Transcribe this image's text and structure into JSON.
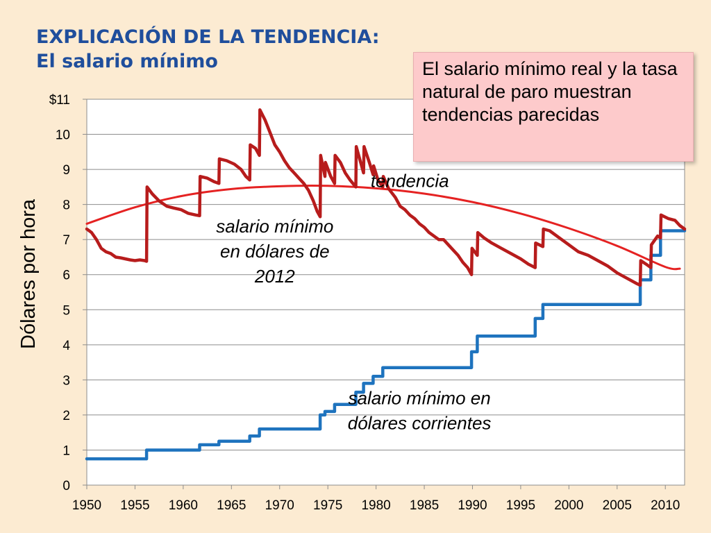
{
  "slide": {
    "title_line1": "EXPLICACIÓN DE LA TENDENCIA:",
    "title_line2": "El salario mínimo"
  },
  "callout": {
    "text": "El salario mínimo real y la tasa natural de paro muestran tendencias parecidas"
  },
  "colors": {
    "real_series": "#B71C1C",
    "nominal_series": "#1E73BE",
    "trend": "#E52222",
    "title": "#1F4E9C",
    "background": "#FCEBD2"
  },
  "chart_data": {
    "type": "line",
    "title": "",
    "xlabel": "",
    "ylabel": "Dólares por hora",
    "xlim": [
      1950,
      2012
    ],
    "ylim": [
      0,
      11
    ],
    "x_ticks": [
      1950,
      1955,
      1960,
      1965,
      1970,
      1975,
      1980,
      1985,
      1990,
      1995,
      2000,
      2005,
      2010
    ],
    "y_ticks": [
      0,
      1,
      2,
      3,
      4,
      5,
      6,
      7,
      8,
      9,
      10,
      11
    ],
    "y_tick_labels": [
      "0",
      "1",
      "2",
      "3",
      "4",
      "5",
      "6",
      "7",
      "8",
      "9",
      "10",
      "$11"
    ],
    "grid": "horizontal",
    "legend": "none",
    "annotations": [
      {
        "id": "trend",
        "lines": [
          "tendencia"
        ],
        "x": 1983.5,
        "y": 8.5
      },
      {
        "id": "real",
        "lines": [
          "salario mínimo",
          "en dólares de",
          "2012"
        ],
        "x": 1969.5,
        "y": 7.2
      },
      {
        "id": "nominal",
        "lines": [
          "salario mínimo en",
          "dólares corrientes"
        ],
        "x": 1984.5,
        "y": 2.3
      }
    ],
    "series": [
      {
        "id": "real",
        "style": "line",
        "points": [
          [
            1950.0,
            7.3
          ],
          [
            1950.5,
            7.2
          ],
          [
            1951.0,
            7.0
          ],
          [
            1951.5,
            6.75
          ],
          [
            1952.0,
            6.65
          ],
          [
            1952.5,
            6.6
          ],
          [
            1953.0,
            6.5
          ],
          [
            1953.5,
            6.48
          ],
          [
            1954.0,
            6.45
          ],
          [
            1954.5,
            6.42
          ],
          [
            1955.0,
            6.4
          ],
          [
            1955.5,
            6.42
          ],
          [
            1956.0,
            6.4
          ],
          [
            1956.2,
            6.38
          ],
          [
            1956.25,
            8.5
          ],
          [
            1956.8,
            8.3
          ],
          [
            1957.5,
            8.1
          ],
          [
            1958.3,
            7.95
          ],
          [
            1959.0,
            7.9
          ],
          [
            1959.8,
            7.85
          ],
          [
            1960.5,
            7.75
          ],
          [
            1961.3,
            7.7
          ],
          [
            1961.7,
            7.68
          ],
          [
            1961.75,
            8.8
          ],
          [
            1962.5,
            8.75
          ],
          [
            1963.2,
            8.65
          ],
          [
            1963.7,
            8.6
          ],
          [
            1963.75,
            9.3
          ],
          [
            1964.5,
            9.25
          ],
          [
            1965.3,
            9.15
          ],
          [
            1966.0,
            9.0
          ],
          [
            1966.5,
            8.8
          ],
          [
            1966.9,
            8.7
          ],
          [
            1966.95,
            9.7
          ],
          [
            1967.5,
            9.6
          ],
          [
            1967.9,
            9.4
          ],
          [
            1967.95,
            10.7
          ],
          [
            1968.5,
            10.4
          ],
          [
            1969.0,
            10.05
          ],
          [
            1969.5,
            9.7
          ],
          [
            1970.0,
            9.5
          ],
          [
            1970.5,
            9.25
          ],
          [
            1971.0,
            9.05
          ],
          [
            1971.5,
            8.9
          ],
          [
            1972.0,
            8.75
          ],
          [
            1972.5,
            8.6
          ],
          [
            1973.0,
            8.4
          ],
          [
            1973.5,
            8.1
          ],
          [
            1973.9,
            7.8
          ],
          [
            1974.2,
            7.65
          ],
          [
            1974.25,
            9.4
          ],
          [
            1974.7,
            8.8
          ],
          [
            1974.75,
            9.2
          ],
          [
            1975.3,
            8.8
          ],
          [
            1975.7,
            8.6
          ],
          [
            1975.75,
            9.4
          ],
          [
            1976.3,
            9.2
          ],
          [
            1976.8,
            8.9
          ],
          [
            1977.3,
            8.7
          ],
          [
            1977.9,
            8.5
          ],
          [
            1977.95,
            9.65
          ],
          [
            1978.4,
            9.2
          ],
          [
            1978.7,
            8.9
          ],
          [
            1978.75,
            9.65
          ],
          [
            1979.3,
            9.2
          ],
          [
            1979.7,
            8.85
          ],
          [
            1979.75,
            9.1
          ],
          [
            1980.2,
            8.7
          ],
          [
            1980.7,
            8.5
          ],
          [
            1980.75,
            8.8
          ],
          [
            1981.3,
            8.45
          ],
          [
            1982.0,
            8.2
          ],
          [
            1982.5,
            7.95
          ],
          [
            1983.0,
            7.85
          ],
          [
            1983.5,
            7.7
          ],
          [
            1984.0,
            7.6
          ],
          [
            1984.5,
            7.45
          ],
          [
            1985.0,
            7.35
          ],
          [
            1985.5,
            7.2
          ],
          [
            1986.0,
            7.1
          ],
          [
            1986.5,
            7.0
          ],
          [
            1987.0,
            7.0
          ],
          [
            1987.5,
            6.85
          ],
          [
            1988.0,
            6.7
          ],
          [
            1988.5,
            6.55
          ],
          [
            1989.0,
            6.35
          ],
          [
            1989.5,
            6.2
          ],
          [
            1989.9,
            6.0
          ],
          [
            1989.95,
            6.75
          ],
          [
            1990.5,
            6.55
          ],
          [
            1990.55,
            7.2
          ],
          [
            1991.2,
            7.05
          ],
          [
            1992.0,
            6.9
          ],
          [
            1993.0,
            6.75
          ],
          [
            1994.0,
            6.6
          ],
          [
            1995.0,
            6.45
          ],
          [
            1995.8,
            6.3
          ],
          [
            1996.5,
            6.2
          ],
          [
            1996.55,
            6.9
          ],
          [
            1997.3,
            6.8
          ],
          [
            1997.35,
            7.3
          ],
          [
            1998.0,
            7.25
          ],
          [
            1999.0,
            7.05
          ],
          [
            2000.0,
            6.85
          ],
          [
            2001.0,
            6.65
          ],
          [
            2002.0,
            6.55
          ],
          [
            2003.0,
            6.4
          ],
          [
            2004.0,
            6.25
          ],
          [
            2005.0,
            6.05
          ],
          [
            2006.0,
            5.9
          ],
          [
            2007.0,
            5.75
          ],
          [
            2007.4,
            5.7
          ],
          [
            2007.45,
            6.4
          ],
          [
            2008.0,
            6.3
          ],
          [
            2008.5,
            6.2
          ],
          [
            2008.55,
            6.85
          ],
          [
            2009.2,
            7.1
          ],
          [
            2009.5,
            7.05
          ],
          [
            2009.55,
            7.7
          ],
          [
            2010.3,
            7.6
          ],
          [
            2011.0,
            7.55
          ],
          [
            2011.5,
            7.4
          ],
          [
            2012.0,
            7.3
          ]
        ]
      },
      {
        "id": "nominal",
        "style": "step",
        "points": [
          [
            1950.0,
            0.75
          ],
          [
            1956.2,
            0.75
          ],
          [
            1956.2,
            1.0
          ],
          [
            1961.7,
            1.0
          ],
          [
            1961.7,
            1.15
          ],
          [
            1963.7,
            1.15
          ],
          [
            1963.7,
            1.25
          ],
          [
            1966.9,
            1.25
          ],
          [
            1966.9,
            1.4
          ],
          [
            1967.9,
            1.4
          ],
          [
            1967.9,
            1.6
          ],
          [
            1974.2,
            1.6
          ],
          [
            1974.2,
            2.0
          ],
          [
            1974.7,
            2.0
          ],
          [
            1974.7,
            2.1
          ],
          [
            1975.7,
            2.1
          ],
          [
            1975.7,
            2.3
          ],
          [
            1977.9,
            2.3
          ],
          [
            1977.9,
            2.65
          ],
          [
            1978.7,
            2.65
          ],
          [
            1978.7,
            2.9
          ],
          [
            1979.7,
            2.9
          ],
          [
            1979.7,
            3.1
          ],
          [
            1980.7,
            3.1
          ],
          [
            1980.7,
            3.35
          ],
          [
            1989.9,
            3.35
          ],
          [
            1989.9,
            3.8
          ],
          [
            1990.5,
            3.8
          ],
          [
            1990.5,
            4.25
          ],
          [
            1996.5,
            4.25
          ],
          [
            1996.5,
            4.75
          ],
          [
            1997.3,
            4.75
          ],
          [
            1997.3,
            5.15
          ],
          [
            2007.4,
            5.15
          ],
          [
            2007.4,
            5.85
          ],
          [
            2008.5,
            5.85
          ],
          [
            2008.5,
            6.55
          ],
          [
            2009.5,
            6.55
          ],
          [
            2009.5,
            7.25
          ],
          [
            2012.0,
            7.25
          ]
        ]
      },
      {
        "id": "trend",
        "style": "curve",
        "points": [
          [
            1950,
            7.45
          ],
          [
            1955,
            7.92
          ],
          [
            1960,
            8.25
          ],
          [
            1965,
            8.44
          ],
          [
            1970,
            8.52
          ],
          [
            1975,
            8.53
          ],
          [
            1980,
            8.46
          ],
          [
            1985,
            8.31
          ],
          [
            1990,
            8.07
          ],
          [
            1995,
            7.74
          ],
          [
            2000,
            7.32
          ],
          [
            2005,
            6.82
          ],
          [
            2010,
            6.22
          ],
          [
            2011.5,
            6.17
          ]
        ]
      }
    ]
  }
}
